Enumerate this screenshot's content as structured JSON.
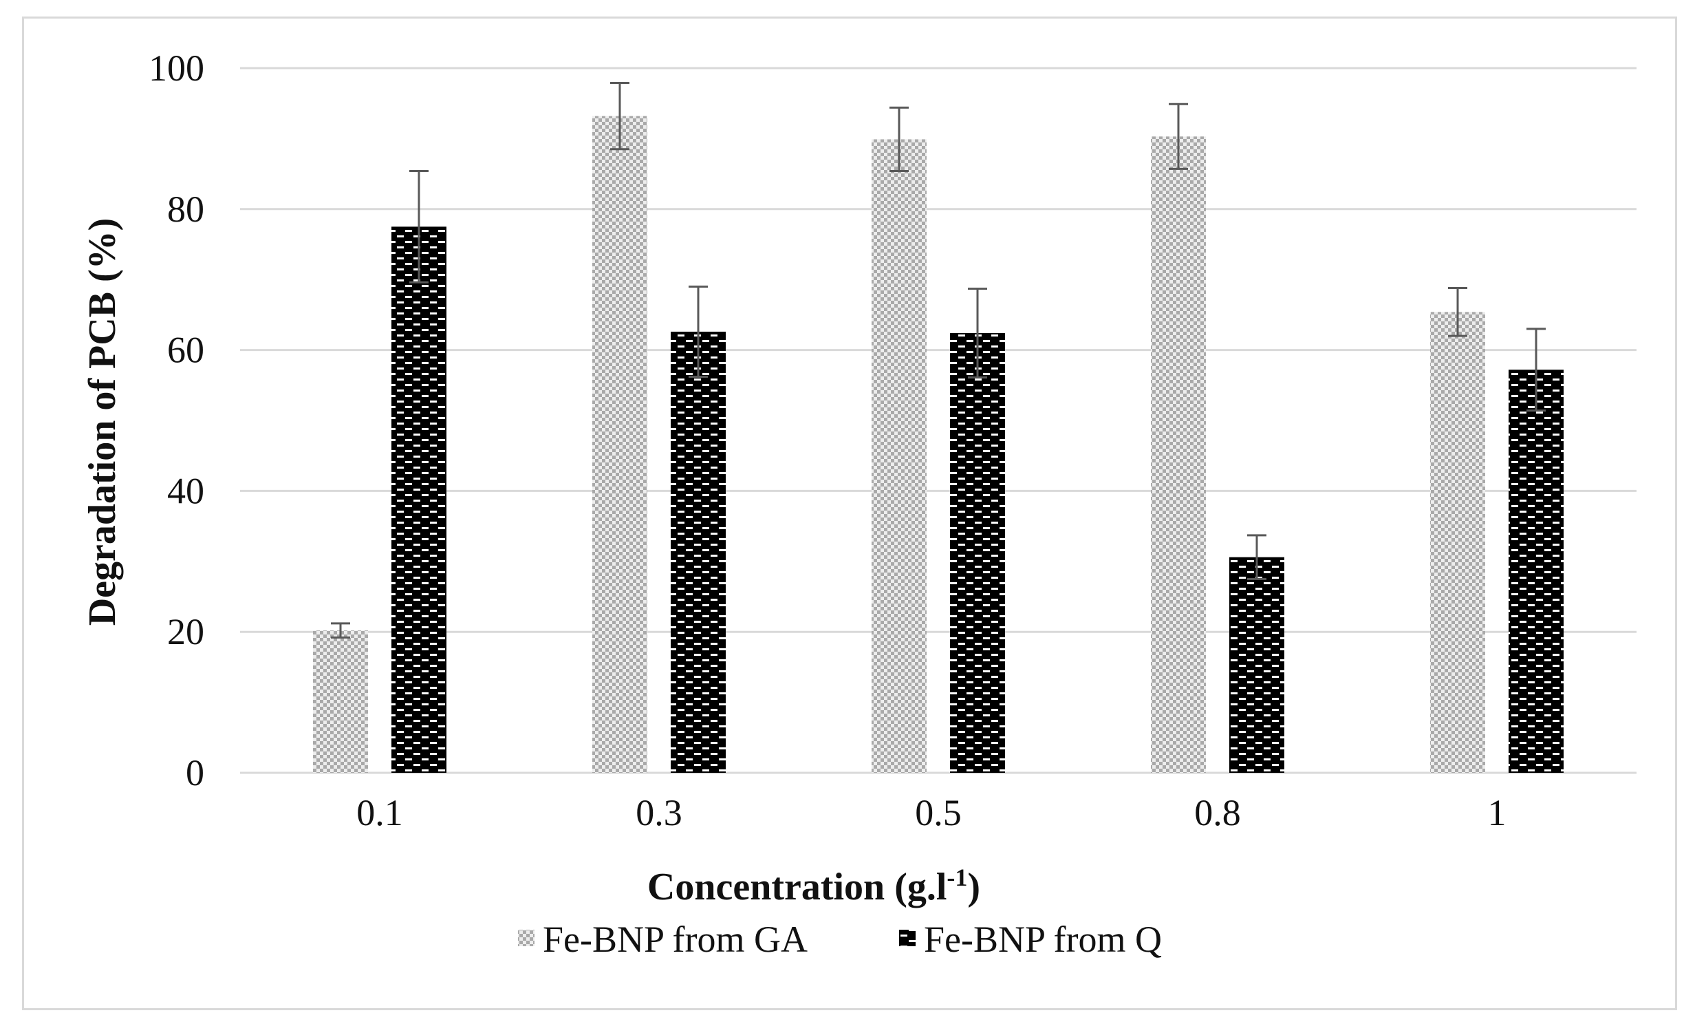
{
  "chart_data": {
    "type": "bar",
    "title": "",
    "xlabel": "Concentration (g.l",
    "xlabel_sup": "-1",
    "xlabel_end": ")",
    "ylabel": "Degradation of PCB (%)",
    "ylim": [
      0,
      100
    ],
    "yticks": [
      0,
      20,
      40,
      60,
      80,
      100
    ],
    "categories": [
      "0.1",
      "0.3",
      "0.5",
      "0.8",
      "1"
    ],
    "grid": true,
    "legend_position": "bottom",
    "series": [
      {
        "name": "Fe-BNP from GA",
        "values": [
          20.2,
          93.2,
          89.9,
          90.3,
          65.4
        ],
        "errors": [
          1.0,
          4.7,
          4.5,
          4.6,
          3.4
        ],
        "pattern": "light-checker",
        "color": "#c8c8c8"
      },
      {
        "name": "Fe-BNP from Q",
        "values": [
          77.5,
          62.6,
          62.4,
          30.6,
          57.2
        ],
        "errors": [
          7.9,
          6.4,
          6.3,
          3.1,
          5.8
        ],
        "pattern": "dark-brick",
        "color": "#000000"
      }
    ],
    "gridline_color": "#d9d9d9",
    "errorbar_color": "#595959"
  }
}
